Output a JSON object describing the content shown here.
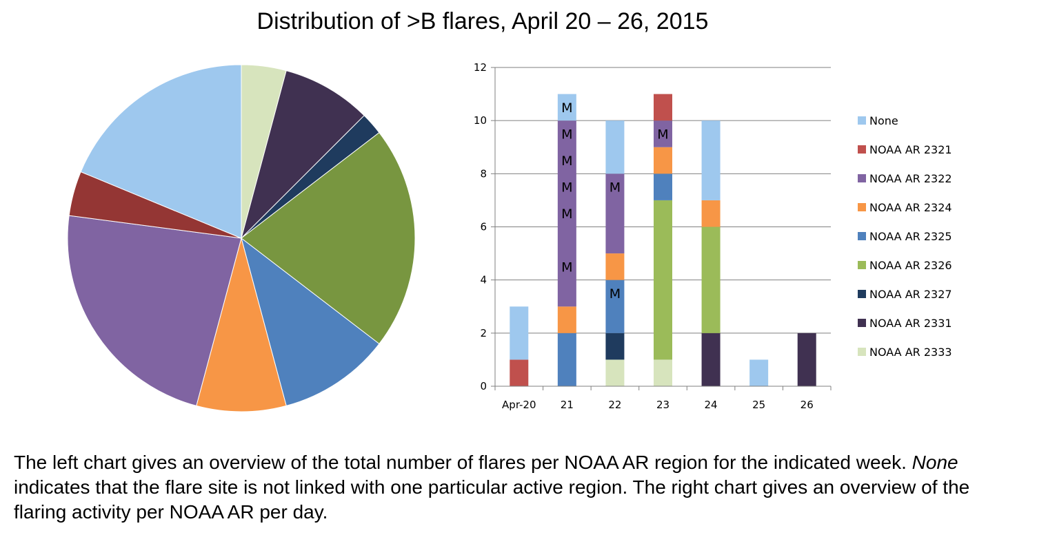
{
  "title": "Distribution of >B flares, April 20 – 26, 2015",
  "caption": {
    "part1": "The left chart gives an overview of the total number of flares per NOAA AR region for the indicated week. ",
    "emphasis": "None",
    "part2": " indicates that the flare site is not linked with one particular active region. The right chart gives an overview of the flaring activity per NOAA AR per day."
  },
  "colors": {
    "None": "#9ec8ee",
    "NOAA AR 2321": "#c0504d",
    "NOAA AR 2322": "#8064a2",
    "NOAA AR 2324": "#f79646",
    "NOAA AR 2325": "#4f81bd",
    "NOAA AR 2326": "#9bbb59",
    "NOAA AR 2327": "#1f3b5e",
    "NOAA AR 2331": "#403151",
    "NOAA AR 2333": "#d7e4bd"
  },
  "chart_data": [
    {
      "type": "pie",
      "labels": [
        "NOAA AR 2333",
        "NOAA AR 2331",
        "NOAA AR 2327",
        "NOAA AR 2326",
        "NOAA AR 2325",
        "NOAA AR 2324",
        "NOAA AR 2322",
        "NOAA AR 2321",
        "None"
      ],
      "values": [
        2,
        4,
        1,
        10,
        5,
        4,
        11,
        2,
        9
      ],
      "pie_colors": [
        "#d7e4bd",
        "#403151",
        "#1f3b5e",
        "#789640",
        "#4f81bd",
        "#f79646",
        "#8064a2",
        "#943634",
        "#9ec8ee"
      ],
      "start": "12 o'clock, clockwise"
    },
    {
      "type": "bar",
      "stacked": true,
      "categories": [
        "Apr-20",
        "21",
        "22",
        "23",
        "24",
        "25",
        "26"
      ],
      "ylim": [
        0,
        12
      ],
      "yticks": [
        "0",
        "2",
        "4",
        "6",
        "8",
        "10",
        "12"
      ],
      "grid": true,
      "legend_position": "right",
      "series": [
        {
          "name": "NOAA AR 2333",
          "values": [
            0,
            0,
            1,
            1,
            0,
            0,
            0
          ]
        },
        {
          "name": "NOAA AR 2331",
          "values": [
            0,
            0,
            0,
            0,
            2,
            0,
            2
          ]
        },
        {
          "name": "NOAA AR 2327",
          "values": [
            0,
            0,
            1,
            0,
            0,
            0,
            0
          ]
        },
        {
          "name": "NOAA AR 2326",
          "values": [
            0,
            0,
            0,
            6,
            4,
            0,
            0
          ]
        },
        {
          "name": "NOAA AR 2325",
          "values": [
            0,
            2,
            2,
            1,
            0,
            0,
            0
          ]
        },
        {
          "name": "NOAA AR 2324",
          "values": [
            0,
            1,
            1,
            1,
            1,
            0,
            0
          ]
        },
        {
          "name": "NOAA AR 2322",
          "values": [
            0,
            7,
            3,
            1,
            0,
            0,
            0
          ]
        },
        {
          "name": "NOAA AR 2321",
          "values": [
            1,
            0,
            0,
            1,
            0,
            0,
            0
          ]
        },
        {
          "name": "None",
          "values": [
            2,
            1,
            2,
            0,
            3,
            1,
            0
          ]
        }
      ],
      "legend_order": [
        "None",
        "NOAA AR 2321",
        "NOAA AR 2322",
        "NOAA AR 2324",
        "NOAA AR 2325",
        "NOAA AR 2326",
        "NOAA AR 2327",
        "NOAA AR 2331",
        "NOAA AR 2333"
      ],
      "annotations": [
        {
          "text": "M",
          "category": "21",
          "y": 10.5
        },
        {
          "text": "M",
          "category": "21",
          "y": 9.5
        },
        {
          "text": "M",
          "category": "21",
          "y": 8.5
        },
        {
          "text": "M",
          "category": "21",
          "y": 7.5
        },
        {
          "text": "M",
          "category": "21",
          "y": 6.5
        },
        {
          "text": "M",
          "category": "21",
          "y": 4.5
        },
        {
          "text": "M",
          "category": "22",
          "y": 7.5
        },
        {
          "text": "M",
          "category": "22",
          "y": 3.5
        },
        {
          "text": "M",
          "category": "23",
          "y": 9.5
        }
      ]
    }
  ]
}
